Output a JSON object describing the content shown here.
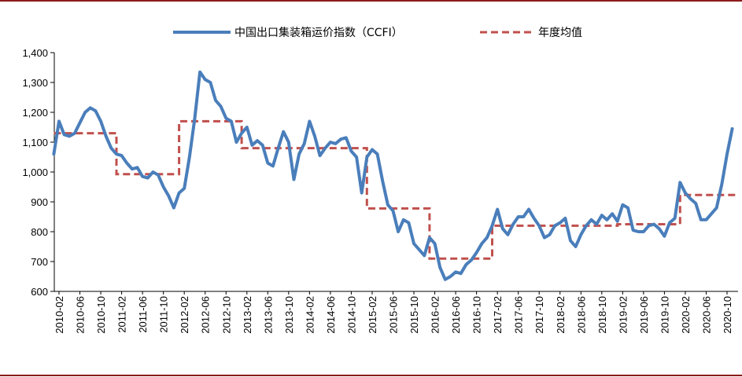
{
  "chart_data": {
    "type": "line",
    "title": "",
    "xlabel": "",
    "ylabel": "",
    "ylim": [
      600,
      1400
    ],
    "yticks": [
      "600",
      "700",
      "800",
      "900",
      "1,000",
      "1,100",
      "1,200",
      "1,300",
      "1,400"
    ],
    "x_tick_labels": [
      "2010-02",
      "2010-06",
      "2010-10",
      "2011-02",
      "2011-06",
      "2011-10",
      "2012-02",
      "2012-06",
      "2012-10",
      "2013-02",
      "2013-06",
      "2013-10",
      "2014-02",
      "2014-06",
      "2014-10",
      "2015-02",
      "2015-06",
      "2015-10",
      "2016-02",
      "2016-06",
      "2016-10",
      "2017-02",
      "2017-06",
      "2017-10",
      "2018-02",
      "2018-06",
      "2018-10",
      "2019-02",
      "2019-06",
      "2019-10",
      "2020-02",
      "2020-06",
      "2020-10"
    ],
    "legend_position": "top",
    "grid": false,
    "series": [
      {
        "name": "中国出口集装箱运价指数（CCFI）",
        "style": "solid",
        "color": "#4a7ebb",
        "points": [
          [
            "2010-01",
            1060
          ],
          [
            "2010-02",
            1170
          ],
          [
            "2010-03",
            1125
          ],
          [
            "2010-04",
            1120
          ],
          [
            "2010-05",
            1130
          ],
          [
            "2010-06",
            1165
          ],
          [
            "2010-07",
            1200
          ],
          [
            "2010-08",
            1215
          ],
          [
            "2010-09",
            1205
          ],
          [
            "2010-10",
            1170
          ],
          [
            "2010-11",
            1120
          ],
          [
            "2010-12",
            1080
          ],
          [
            "2011-01",
            1060
          ],
          [
            "2011-02",
            1055
          ],
          [
            "2011-03",
            1030
          ],
          [
            "2011-04",
            1010
          ],
          [
            "2011-05",
            1015
          ],
          [
            "2011-06",
            985
          ],
          [
            "2011-07",
            980
          ],
          [
            "2011-08",
            1000
          ],
          [
            "2011-09",
            990
          ],
          [
            "2011-10",
            950
          ],
          [
            "2011-11",
            920
          ],
          [
            "2011-12",
            880
          ],
          [
            "2012-01",
            930
          ],
          [
            "2012-02",
            945
          ],
          [
            "2012-03",
            1050
          ],
          [
            "2012-04",
            1180
          ],
          [
            "2012-05",
            1335
          ],
          [
            "2012-06",
            1310
          ],
          [
            "2012-07",
            1300
          ],
          [
            "2012-08",
            1240
          ],
          [
            "2012-09",
            1220
          ],
          [
            "2012-10",
            1180
          ],
          [
            "2012-11",
            1170
          ],
          [
            "2012-12",
            1100
          ],
          [
            "2013-01",
            1130
          ],
          [
            "2013-02",
            1150
          ],
          [
            "2013-03",
            1090
          ],
          [
            "2013-04",
            1105
          ],
          [
            "2013-05",
            1090
          ],
          [
            "2013-06",
            1030
          ],
          [
            "2013-07",
            1020
          ],
          [
            "2013-08",
            1080
          ],
          [
            "2013-09",
            1135
          ],
          [
            "2013-10",
            1100
          ],
          [
            "2013-11",
            975
          ],
          [
            "2013-12",
            1060
          ],
          [
            "2014-01",
            1095
          ],
          [
            "2014-02",
            1170
          ],
          [
            "2014-03",
            1120
          ],
          [
            "2014-04",
            1055
          ],
          [
            "2014-05",
            1080
          ],
          [
            "2014-06",
            1100
          ],
          [
            "2014-07",
            1095
          ],
          [
            "2014-08",
            1110
          ],
          [
            "2014-09",
            1115
          ],
          [
            "2014-10",
            1070
          ],
          [
            "2014-11",
            1050
          ],
          [
            "2014-12",
            930
          ],
          [
            "2015-01",
            1050
          ],
          [
            "2015-02",
            1075
          ],
          [
            "2015-03",
            1060
          ],
          [
            "2015-04",
            970
          ],
          [
            "2015-05",
            890
          ],
          [
            "2015-06",
            870
          ],
          [
            "2015-07",
            800
          ],
          [
            "2015-08",
            840
          ],
          [
            "2015-09",
            830
          ],
          [
            "2015-10",
            760
          ],
          [
            "2015-11",
            740
          ],
          [
            "2015-12",
            720
          ],
          [
            "2016-01",
            780
          ],
          [
            "2016-02",
            760
          ],
          [
            "2016-03",
            680
          ],
          [
            "2016-04",
            640
          ],
          [
            "2016-05",
            650
          ],
          [
            "2016-06",
            665
          ],
          [
            "2016-07",
            660
          ],
          [
            "2016-08",
            690
          ],
          [
            "2016-09",
            705
          ],
          [
            "2016-10",
            730
          ],
          [
            "2016-11",
            760
          ],
          [
            "2016-12",
            780
          ],
          [
            "2017-01",
            820
          ],
          [
            "2017-02",
            875
          ],
          [
            "2017-03",
            810
          ],
          [
            "2017-04",
            790
          ],
          [
            "2017-05",
            825
          ],
          [
            "2017-06",
            850
          ],
          [
            "2017-07",
            850
          ],
          [
            "2017-08",
            875
          ],
          [
            "2017-09",
            845
          ],
          [
            "2017-10",
            820
          ],
          [
            "2017-11",
            780
          ],
          [
            "2017-12",
            790
          ],
          [
            "2018-01",
            820
          ],
          [
            "2018-02",
            830
          ],
          [
            "2018-03",
            845
          ],
          [
            "2018-04",
            770
          ],
          [
            "2018-05",
            750
          ],
          [
            "2018-06",
            790
          ],
          [
            "2018-07",
            820
          ],
          [
            "2018-08",
            840
          ],
          [
            "2018-09",
            825
          ],
          [
            "2018-10",
            855
          ],
          [
            "2018-11",
            840
          ],
          [
            "2018-12",
            860
          ],
          [
            "2019-01",
            835
          ],
          [
            "2019-02",
            890
          ],
          [
            "2019-03",
            880
          ],
          [
            "2019-04",
            805
          ],
          [
            "2019-05",
            800
          ],
          [
            "2019-06",
            800
          ],
          [
            "2019-07",
            820
          ],
          [
            "2019-08",
            825
          ],
          [
            "2019-09",
            810
          ],
          [
            "2019-10",
            785
          ],
          [
            "2019-11",
            830
          ],
          [
            "2019-12",
            845
          ],
          [
            "2020-01",
            965
          ],
          [
            "2020-02",
            930
          ],
          [
            "2020-03",
            910
          ],
          [
            "2020-04",
            895
          ],
          [
            "2020-05",
            840
          ],
          [
            "2020-06",
            840
          ],
          [
            "2020-07",
            860
          ],
          [
            "2020-08",
            880
          ],
          [
            "2020-09",
            960
          ],
          [
            "2020-10",
            1060
          ],
          [
            "2020-11",
            1145
          ]
        ]
      },
      {
        "name": "年度均值",
        "style": "dashed",
        "color": "#c0504d",
        "steps": [
          {
            "from": "2010-01",
            "to": "2011-01",
            "value": 1130
          },
          {
            "from": "2011-01",
            "to": "2012-01",
            "value": 993
          },
          {
            "from": "2012-01",
            "to": "2013-01",
            "value": 1170
          },
          {
            "from": "2013-01",
            "to": "2015-01",
            "value": 1080
          },
          {
            "from": "2015-01",
            "to": "2016-01",
            "value": 878
          },
          {
            "from": "2016-01",
            "to": "2017-01",
            "value": 710
          },
          {
            "from": "2017-01",
            "to": "2019-01",
            "value": 820
          },
          {
            "from": "2019-01",
            "to": "2020-01",
            "value": 825
          },
          {
            "from": "2020-01",
            "to": "2020-12",
            "value": 923
          }
        ]
      }
    ]
  },
  "colors": {
    "rule": "#8b1a1a",
    "axis": "#000000"
  }
}
